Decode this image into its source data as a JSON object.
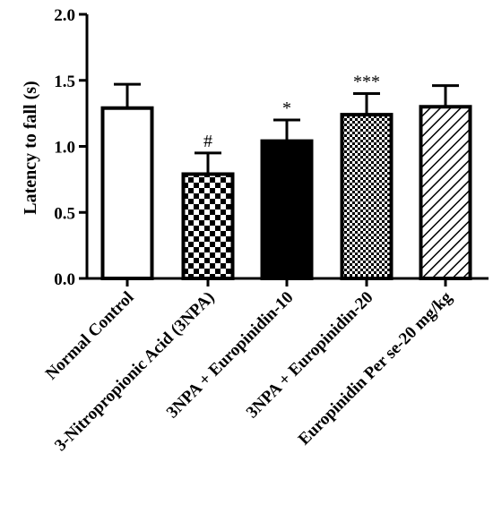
{
  "chart_data": {
    "type": "bar",
    "categories": [
      "Normal Control",
      "3-Nitropropionic Acid (3NPA)",
      "3NPA + Europinidin-10",
      "3NPA +  Europinidin-20",
      "Europinidin Per se-20 mg/kg"
    ],
    "values": [
      1.29,
      0.79,
      1.04,
      1.24,
      1.3
    ],
    "errors": [
      0.18,
      0.16,
      0.16,
      0.16,
      0.16
    ],
    "significance": [
      "",
      "#",
      "*",
      "***",
      ""
    ],
    "fills": [
      "white",
      "checker-large",
      "black",
      "checker-small",
      "diagonal"
    ],
    "title": "",
    "xlabel": "",
    "ylabel": "Latency to fall (s)",
    "ylim": [
      0,
      2.0
    ],
    "yticks": [
      "0.0",
      "0.5",
      "1.0",
      "1.5",
      "2.0"
    ],
    "grid": false
  }
}
